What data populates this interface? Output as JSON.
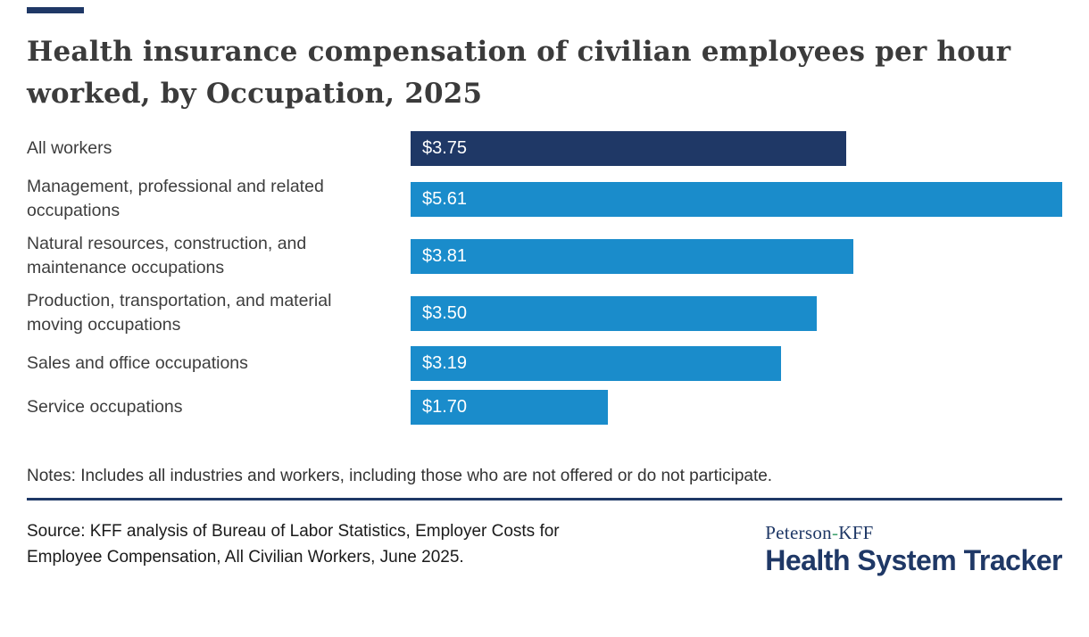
{
  "page": {
    "title": "Health insurance compensation of civilian employees per hour\nworked, by Occupation, 2025",
    "notes": "Notes: Includes all industries and workers, including those who are not offered or do not participate.",
    "source": "Source: KFF analysis of Bureau of Labor Statistics, Employer Costs for Employee Compensation, All Civilian Workers, June 2025.",
    "logo": {
      "brand_prefix": "Peterson",
      "brand_separator": "-",
      "brand_suffix": "KFF",
      "brand_main": "Health System Tracker"
    }
  },
  "colors": {
    "navy": "#1f3866",
    "blue": "#1a8ccb",
    "divider": "#1f3866",
    "logo_green": "#41a16f",
    "title_text": "#3b3b3b",
    "label_text": "#3d3d3d"
  },
  "chart_data": {
    "type": "bar",
    "orientation": "horizontal",
    "title": "Health insurance compensation of civilian employees per hour worked, by Occupation, 2025",
    "categories": [
      "All workers",
      "Management, professional and related occupations",
      "Natural resources, construction, and maintenance occupations",
      "Production, transportation, and material moving occupations",
      "Sales and office occupations",
      "Service occupations"
    ],
    "values": [
      3.75,
      5.61,
      3.81,
      3.5,
      3.19,
      1.7
    ],
    "value_labels": [
      "$3.75",
      "$5.61",
      "$3.81",
      "$3.50",
      "$3.19",
      "$1.70"
    ],
    "display_label_lines": [
      "All workers",
      "Management, professional and related\noccupations",
      "Natural resources, construction, and\nmaintenance occupations",
      "Production, transportation, and material\nmoving occupations",
      "Sales and office occupations",
      "Service occupations"
    ],
    "xlim": [
      0,
      5.61
    ],
    "highlight_index": 0,
    "bar_color": "#1a8ccb",
    "highlight_color": "#1f3866",
    "grid": false,
    "legend": "none",
    "value_label_position": "inside-left"
  }
}
